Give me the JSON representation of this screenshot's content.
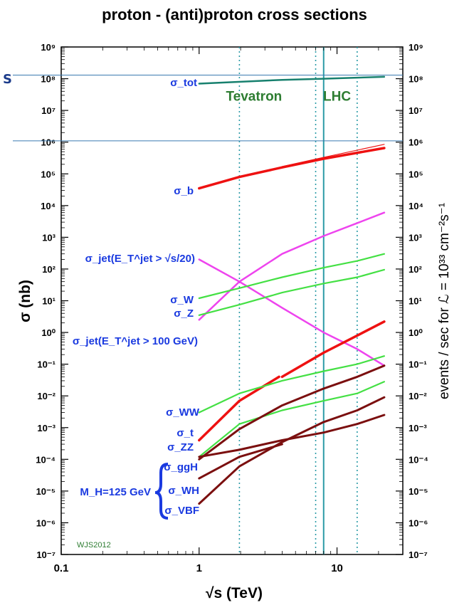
{
  "title": "proton - (anti)proton cross sections",
  "corner_mark": "S",
  "credit": "WJS2012",
  "chart_data": {
    "type": "line",
    "title": "proton - (anti)proton cross sections",
    "xlabel": "√s  (TeV)",
    "ylabel": "σ  (nb)",
    "y2label": "events / sec for ℒ = 10³³ cm⁻²s⁻¹",
    "x_scale": "log",
    "y_scale": "log",
    "xlim": [
      0.1,
      30
    ],
    "ylim": [
      1e-07,
      1000000000.0
    ],
    "x_ticks": [
      {
        "v": 0.1,
        "label": "0.1"
      },
      {
        "v": 1,
        "label": "1"
      },
      {
        "v": 10,
        "label": "10"
      }
    ],
    "y_tick_exponents": [
      -7,
      -6,
      -5,
      -4,
      -3,
      -2,
      -1,
      0,
      1,
      2,
      3,
      4,
      5,
      6,
      7,
      8,
      9
    ],
    "y_tick_labels": [
      "10⁻⁷",
      "10⁻⁶",
      "10⁻⁵",
      "10⁻⁴",
      "10⁻³",
      "10⁻²",
      "10⁻¹",
      "10⁰",
      "10¹",
      "10²",
      "10³",
      "10⁴",
      "10⁵",
      "10⁶",
      "10⁷",
      "10⁸",
      "10⁹"
    ],
    "y2_tick_labels": [
      "10⁻⁷",
      "10⁻⁶",
      "10⁻⁵",
      "10⁻⁴",
      "10⁻³",
      "10⁻²",
      "10⁻¹",
      "10⁰",
      "10¹",
      "10²",
      "10³",
      "10⁴",
      "10⁵",
      "10⁶",
      "10⁷",
      "10⁸",
      "10⁹"
    ],
    "vertical_markers": [
      {
        "x": 1.96,
        "style": "dotted",
        "color": "#2a9aa6"
      },
      {
        "x": 7,
        "style": "dotted",
        "color": "#2a9aa6"
      },
      {
        "x": 8,
        "style": "solid",
        "color": "#2a9aa6"
      },
      {
        "x": 14,
        "style": "dotted",
        "color": "#2a9aa6"
      }
    ],
    "horizontal_markers": [
      {
        "y": 130000000,
        "color": "#3a7ab0"
      },
      {
        "y": 1100000,
        "color": "#3a7ab0"
      }
    ],
    "region_labels": [
      {
        "text": "Tevatron",
        "x": 2.5,
        "y": 20000000,
        "color": "#2e7d32"
      },
      {
        "text": "LHC",
        "x": 10,
        "y": 20000000,
        "color": "#2e7d32"
      }
    ],
    "series": [
      {
        "label_key": "tot",
        "color": "#17806e",
        "width": 2.5,
        "points": [
          [
            1,
            70000000
          ],
          [
            4,
            92000000
          ],
          [
            8,
            100000000
          ],
          [
            22,
            115000000
          ]
        ]
      },
      {
        "label_key": "b",
        "color": "#ee1111",
        "width": 3.5,
        "points": [
          [
            1,
            35000
          ],
          [
            1.96,
            80000
          ],
          [
            4,
            160000
          ],
          [
            8,
            300000
          ],
          [
            22,
            650000
          ]
        ]
      },
      {
        "label_key": "b_thin",
        "color": "#ee1111",
        "width": 1.2,
        "points": [
          [
            4,
            170000
          ],
          [
            8,
            330000
          ],
          [
            22,
            850000
          ]
        ]
      },
      {
        "label_key": "jet20",
        "color": "#ee44ee",
        "width": 2.5,
        "points": [
          [
            1,
            200
          ],
          [
            1.96,
            40
          ],
          [
            4,
            6
          ],
          [
            8,
            1
          ],
          [
            14,
            0.3
          ],
          [
            22,
            0.09
          ]
        ]
      },
      {
        "label_key": "jet100",
        "color": "#ee44ee",
        "width": 2.5,
        "points": [
          [
            1,
            2.5
          ],
          [
            1.96,
            40
          ],
          [
            4,
            300
          ],
          [
            8,
            1100
          ],
          [
            14,
            2800
          ],
          [
            22,
            6000
          ]
        ]
      },
      {
        "label_key": "W",
        "color": "#44e044",
        "width": 2.2,
        "points": [
          [
            1,
            12
          ],
          [
            1.96,
            25
          ],
          [
            4,
            55
          ],
          [
            8,
            110
          ],
          [
            14,
            180
          ],
          [
            22,
            300
          ]
        ]
      },
      {
        "label_key": "Z",
        "color": "#44e044",
        "width": 2.2,
        "points": [
          [
            1,
            3.5
          ],
          [
            1.96,
            7.5
          ],
          [
            4,
            18
          ],
          [
            8,
            35
          ],
          [
            14,
            55
          ],
          [
            22,
            95
          ]
        ]
      },
      {
        "label_key": "t",
        "color": "#ee1111",
        "width": 3.5,
        "points": [
          [
            1,
            0.0004
          ],
          [
            1.96,
            0.007
          ],
          [
            3.8,
            0.04
          ]
        ]
      },
      {
        "label_key": "t_lhc",
        "color": "#ee1111",
        "width": 3.5,
        "points": [
          [
            4,
            0.04
          ],
          [
            8,
            0.23
          ],
          [
            14,
            0.8
          ],
          [
            22,
            2.2
          ]
        ]
      },
      {
        "label_key": "WW",
        "color": "#44e044",
        "width": 2.2,
        "points": [
          [
            1,
            0.003
          ],
          [
            1.96,
            0.012
          ],
          [
            4,
            0.03
          ],
          [
            8,
            0.06
          ],
          [
            14,
            0.1
          ],
          [
            22,
            0.18
          ]
        ]
      },
      {
        "label_key": "ZZ",
        "color": "#44e044",
        "width": 2.2,
        "points": [
          [
            1,
            0.00012
          ],
          [
            1.96,
            0.0013
          ],
          [
            4,
            0.0035
          ],
          [
            8,
            0.007
          ],
          [
            14,
            0.012
          ],
          [
            22,
            0.028
          ]
        ]
      },
      {
        "label_key": "ggH",
        "color": "#7b0f0f",
        "width": 3,
        "points": [
          [
            1,
            0.0001
          ],
          [
            1.96,
            0.0009
          ],
          [
            4,
            0.005
          ],
          [
            8,
            0.017
          ],
          [
            14,
            0.04
          ],
          [
            22,
            0.09
          ]
        ]
      },
      {
        "label_key": "WH",
        "color": "#7b0f0f",
        "width": 3,
        "points": [
          [
            1,
            0.00012
          ],
          [
            1.96,
            0.0002
          ],
          [
            4,
            0.0004
          ],
          [
            8,
            0.0007
          ],
          [
            14,
            0.0013
          ],
          [
            22,
            0.0025
          ]
        ]
      },
      {
        "label_key": "VBF",
        "color": "#7b0f0f",
        "width": 3,
        "points": [
          [
            1,
            4e-06
          ],
          [
            1.96,
            6e-05
          ],
          [
            4,
            0.00035
          ],
          [
            8,
            0.0015
          ],
          [
            14,
            0.0035
          ],
          [
            22,
            0.009
          ]
        ]
      },
      {
        "label_key": "VBF2",
        "color": "#7b0f0f",
        "width": 3,
        "points": [
          [
            1,
            2.5e-05
          ],
          [
            1.96,
            0.00012
          ],
          [
            4,
            0.0003
          ]
        ]
      }
    ],
    "labels": {
      "tot": "σ_tot",
      "b": "σ_b",
      "jet20": "σ_jet(E_T^jet > √s/20)",
      "W": "σ_W",
      "Z": "σ_Z",
      "jet100": "σ_jet(E_T^jet > 100 GeV)",
      "WW": "σ_WW",
      "t": "σ_t",
      "ZZ": "σ_ZZ",
      "ggH": "σ_ggH",
      "WH": "σ_WH",
      "VBF": "σ_VBF",
      "higgs_mass": "M_H=125 GeV"
    }
  }
}
